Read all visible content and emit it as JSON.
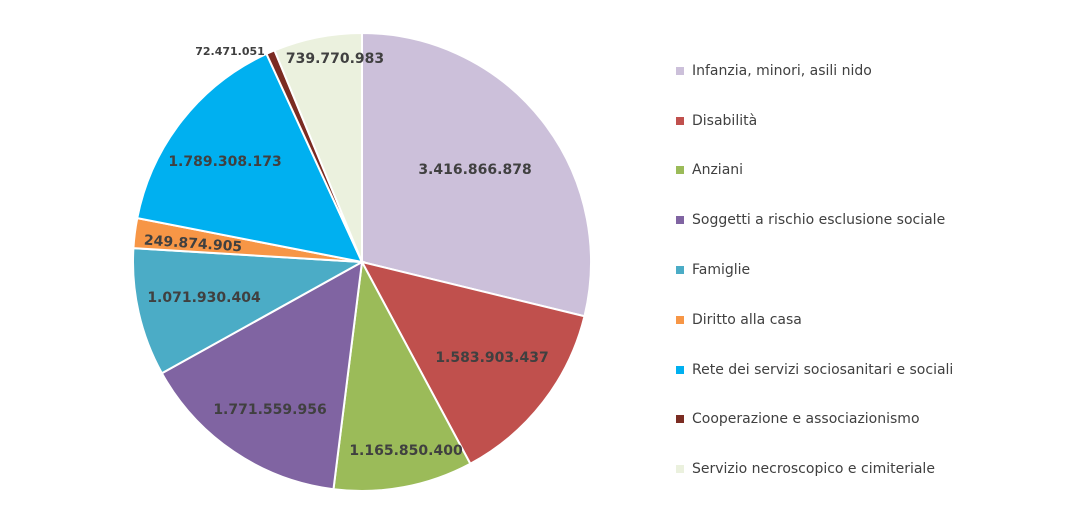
{
  "chart_data": {
    "type": "pie",
    "title": "",
    "start": "top",
    "direction": "clockwise",
    "series": [
      {
        "category": "Infanzia, minori, asili nido",
        "value": 3416866878,
        "label": "3.416.866.878",
        "color": "#ccc0da"
      },
      {
        "category": "Disabilità",
        "value": 1583903437,
        "label": "1.583.903.437",
        "color": "#c0504d"
      },
      {
        "category": "Anziani",
        "value": 1165850400,
        "label": "1.165.850.400",
        "color": "#9bbb59"
      },
      {
        "category": "Soggetti a rischio esclusione sociale",
        "value": 1771559956,
        "label": "1.771.559.956",
        "color": "#8064a2"
      },
      {
        "category": "Famiglie",
        "value": 1071930404,
        "label": "1.071.930.404",
        "color": "#4bacc6"
      },
      {
        "category": "Diritto alla casa",
        "value": 249874905,
        "label": "249.874.905",
        "color": "#f79646"
      },
      {
        "category": "Rete dei servizi sociosanitari e sociali",
        "value": 1789308173,
        "label": "1.789.308.173",
        "color": "#00b0f0"
      },
      {
        "category": "Cooperazione e associazionismo",
        "value": 72471051,
        "label": "72.471.051",
        "color": "#7b2c22"
      },
      {
        "category": "Servizio necroscopico e cimiteriale",
        "value": 739770983,
        "label": "739.770.983",
        "color": "#ebf1de"
      }
    ],
    "legend_position": "right"
  }
}
